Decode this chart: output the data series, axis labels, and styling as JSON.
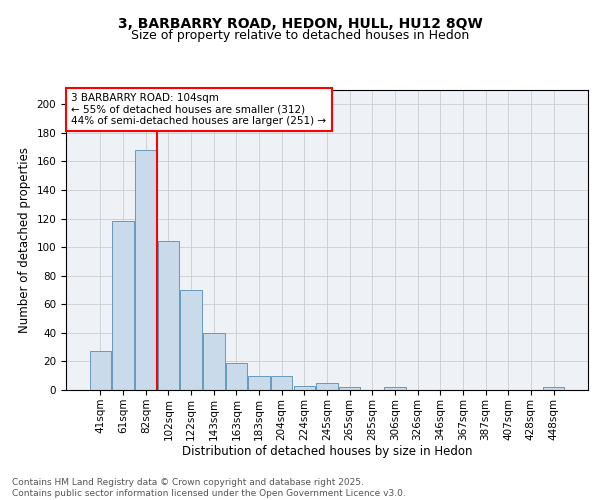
{
  "title1": "3, BARBARRY ROAD, HEDON, HULL, HU12 8QW",
  "title2": "Size of property relative to detached houses in Hedon",
  "xlabel": "Distribution of detached houses by size in Hedon",
  "ylabel": "Number of detached properties",
  "categories": [
    "41sqm",
    "61sqm",
    "82sqm",
    "102sqm",
    "122sqm",
    "143sqm",
    "163sqm",
    "183sqm",
    "204sqm",
    "224sqm",
    "245sqm",
    "265sqm",
    "285sqm",
    "306sqm",
    "326sqm",
    "346sqm",
    "367sqm",
    "387sqm",
    "407sqm",
    "428sqm",
    "448sqm"
  ],
  "values": [
    27,
    118,
    168,
    104,
    70,
    40,
    19,
    10,
    10,
    3,
    5,
    2,
    0,
    2,
    0,
    0,
    0,
    0,
    0,
    0,
    2
  ],
  "bar_color": "#c9daea",
  "bar_edge_color": "#6699bb",
  "red_line_index": 3,
  "annotation_line1": "3 BARBARRY ROAD: 104sqm",
  "annotation_line2": "← 55% of detached houses are smaller (312)",
  "annotation_line3": "44% of semi-detached houses are larger (251) →",
  "annotation_box_color": "white",
  "annotation_box_edge_color": "red",
  "red_line_color": "red",
  "ylim": [
    0,
    210
  ],
  "yticks": [
    0,
    20,
    40,
    60,
    80,
    100,
    120,
    140,
    160,
    180,
    200
  ],
  "grid_color": "#cccccc",
  "background_color": "#eef2f7",
  "footer1": "Contains HM Land Registry data © Crown copyright and database right 2025.",
  "footer2": "Contains public sector information licensed under the Open Government Licence v3.0.",
  "title_fontsize": 10,
  "subtitle_fontsize": 9,
  "tick_fontsize": 7.5,
  "label_fontsize": 8.5,
  "annotation_fontsize": 7.5,
  "footer_fontsize": 6.5
}
